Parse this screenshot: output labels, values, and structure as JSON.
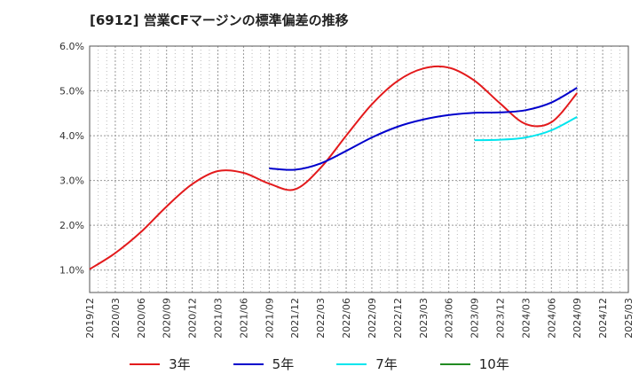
{
  "title": "[6912]  営業CFマージンの標準偏差の推移",
  "chart_data": {
    "type": "line",
    "title": "[6912]  営業CFマージンの標準偏差の推移",
    "xlabel": "",
    "ylabel": "",
    "ylim": [
      0.5,
      6.0
    ],
    "x_ticks": [
      "2019/12",
      "2020/03",
      "2020/06",
      "2020/09",
      "2020/12",
      "2021/03",
      "2021/06",
      "2021/09",
      "2021/12",
      "2022/03",
      "2022/06",
      "2022/09",
      "2022/12",
      "2023/03",
      "2023/06",
      "2023/09",
      "2023/12",
      "2024/03",
      "2024/06",
      "2024/09",
      "2024/12",
      "2025/03"
    ],
    "y_ticks": [
      {
        "value": 1.0,
        "label": "1.0%"
      },
      {
        "value": 2.0,
        "label": "2.0%"
      },
      {
        "value": 3.0,
        "label": "3.0%"
      },
      {
        "value": 4.0,
        "label": "4.0%"
      },
      {
        "value": 5.0,
        "label": "5.0%"
      },
      {
        "value": 6.0,
        "label": "6.0%"
      }
    ],
    "grid": true,
    "legend_position": "bottom",
    "series": [
      {
        "name": "3年",
        "color": "#e31a1c",
        "values": [
          [
            "2019/12",
            1.02
          ],
          [
            "2020/03",
            1.38
          ],
          [
            "2020/06",
            1.85
          ],
          [
            "2020/09",
            2.42
          ],
          [
            "2020/12",
            2.92
          ],
          [
            "2021/03",
            3.21
          ],
          [
            "2021/06",
            3.17
          ],
          [
            "2021/09",
            2.93
          ],
          [
            "2021/12",
            2.8
          ],
          [
            "2022/03",
            3.28
          ],
          [
            "2022/06",
            4.0
          ],
          [
            "2022/09",
            4.7
          ],
          [
            "2022/12",
            5.22
          ],
          [
            "2023/03",
            5.5
          ],
          [
            "2023/06",
            5.52
          ],
          [
            "2023/09",
            5.23
          ],
          [
            "2023/12",
            4.72
          ],
          [
            "2024/03",
            4.26
          ],
          [
            "2024/06",
            4.3
          ],
          [
            "2024/09",
            4.95
          ]
        ]
      },
      {
        "name": "5年",
        "color": "#0000cc",
        "values": [
          [
            "2021/09",
            3.27
          ],
          [
            "2021/12",
            3.24
          ],
          [
            "2022/03",
            3.38
          ],
          [
            "2022/06",
            3.66
          ],
          [
            "2022/09",
            3.96
          ],
          [
            "2022/12",
            4.2
          ],
          [
            "2023/03",
            4.36
          ],
          [
            "2023/06",
            4.46
          ],
          [
            "2023/09",
            4.51
          ],
          [
            "2023/12",
            4.52
          ],
          [
            "2024/03",
            4.57
          ],
          [
            "2024/06",
            4.74
          ],
          [
            "2024/09",
            5.07
          ]
        ]
      },
      {
        "name": "7年",
        "color": "#00e5ee",
        "values": [
          [
            "2023/09",
            3.9
          ],
          [
            "2023/12",
            3.91
          ],
          [
            "2024/03",
            3.96
          ],
          [
            "2024/06",
            4.12
          ],
          [
            "2024/09",
            4.42
          ]
        ]
      },
      {
        "name": "10年",
        "color": "#228b22",
        "values": []
      }
    ]
  }
}
